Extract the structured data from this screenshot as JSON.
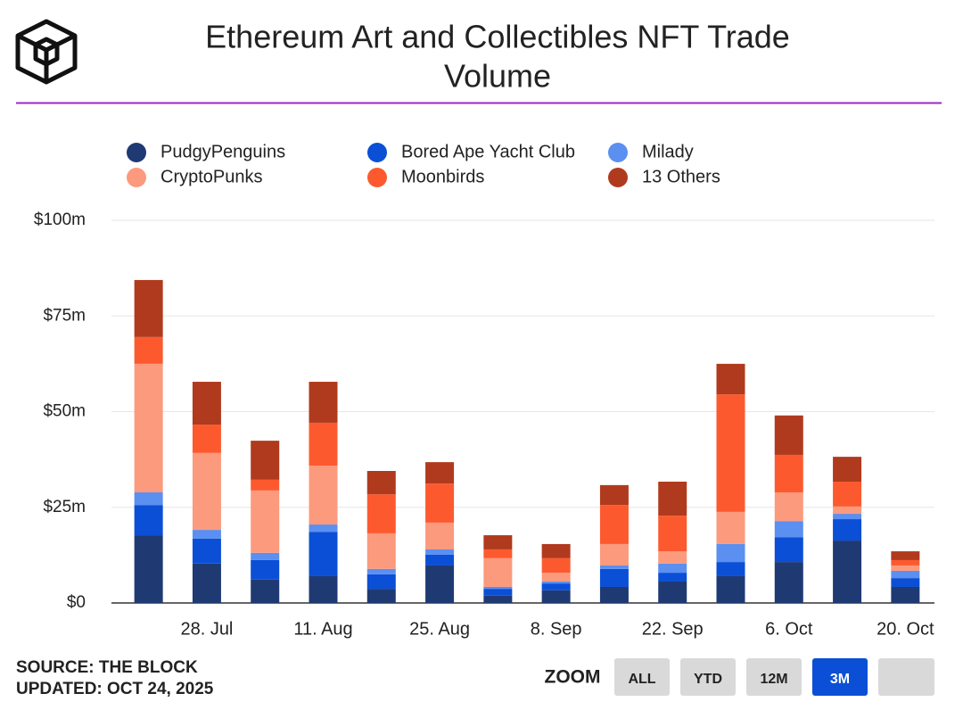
{
  "chart_data": {
    "type": "stacked_bar",
    "title": [
      "Ethereum Art and Collectibles NFT Trade",
      "Volume"
    ],
    "categories": [
      null,
      "28. Jul",
      null,
      "11. Aug",
      null,
      "25. Aug",
      null,
      "8. Sep",
      null,
      "22. Sep",
      null,
      "6. Oct",
      null,
      "20. Oct"
    ],
    "series": [
      {
        "name": "PudgyPenguins",
        "color": "#1f3a73",
        "values": [
          17.7,
          10.3,
          6.1,
          7.0,
          3.7,
          9.8,
          1.9,
          3.3,
          4.2,
          5.6,
          7.0,
          10.7,
          16.3,
          4.2
        ]
      },
      {
        "name": "Bored Ape Yacht Club",
        "color": "#0a4fd6",
        "values": [
          7.9,
          6.5,
          5.1,
          11.6,
          3.8,
          2.8,
          1.8,
          1.8,
          4.7,
          2.3,
          3.7,
          6.5,
          5.6,
          2.3
        ]
      },
      {
        "name": "Milady",
        "color": "#5b8ff0",
        "values": [
          3.3,
          2.3,
          1.9,
          1.9,
          1.4,
          1.4,
          0.5,
          0.5,
          0.9,
          2.4,
          4.7,
          4.2,
          1.4,
          1.9
        ]
      },
      {
        "name": "CryptoPunks",
        "color": "#fc9a7e",
        "values": [
          33.6,
          20.1,
          16.3,
          15.4,
          9.3,
          7.0,
          7.5,
          2.3,
          5.6,
          3.2,
          8.4,
          7.5,
          1.9,
          1.4
        ]
      },
      {
        "name": "Moonbirds",
        "color": "#fc5a2e",
        "values": [
          7.0,
          7.4,
          2.8,
          11.2,
          10.2,
          10.2,
          2.3,
          3.8,
          10.2,
          9.3,
          30.7,
          9.8,
          6.5,
          1.4
        ]
      },
      {
        "name": "13 Others",
        "color": "#b03a1e",
        "values": [
          14.9,
          11.2,
          10.2,
          10.7,
          6.1,
          5.6,
          3.7,
          3.7,
          5.2,
          8.9,
          8.0,
          10.3,
          6.5,
          2.3
        ]
      }
    ],
    "ylim": [
      0,
      100
    ],
    "yticks": [
      {
        "value": 0,
        "label": "$0"
      },
      {
        "value": 25,
        "label": "$25m"
      },
      {
        "value": 50,
        "label": "$50m"
      },
      {
        "value": 75,
        "label": "$75m"
      },
      {
        "value": 100,
        "label": "$100m"
      }
    ],
    "grid": true,
    "legend": "top"
  },
  "footer": {
    "source": "SOURCE: THE BLOCK",
    "updated": "UPDATED: OCT 24, 2025"
  },
  "zoom": {
    "label": "ZOOM",
    "buttons": [
      "ALL",
      "YTD",
      "12M",
      "3M"
    ],
    "active": "3M"
  }
}
